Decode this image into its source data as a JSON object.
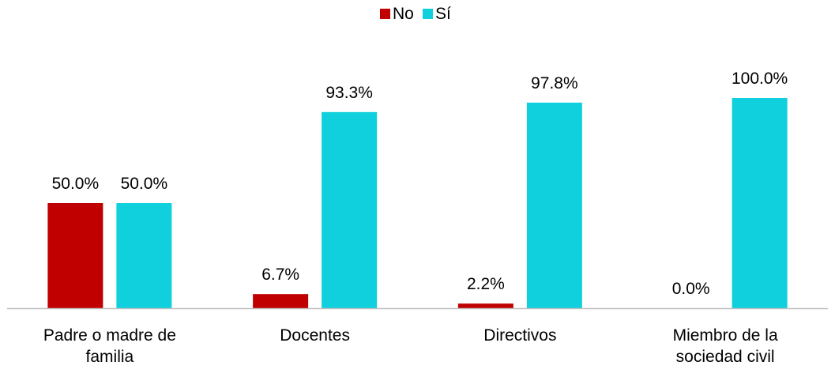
{
  "chart_data": {
    "type": "bar",
    "categories": [
      [
        "Padre o madre de",
        "familia"
      ],
      [
        "Docentes"
      ],
      [
        "Directivos"
      ],
      [
        "Miembro de la",
        "sociedad civil"
      ]
    ],
    "series": [
      {
        "name": "No",
        "color": "#C00000",
        "values": [
          50.0,
          6.7,
          2.2,
          0.0
        ],
        "labels": [
          "50.0%",
          "6.7%",
          "2.2%",
          "0.0%"
        ]
      },
      {
        "name": "Sí",
        "color": "#0FD0DC",
        "values": [
          50.0,
          93.3,
          97.8,
          100.0
        ],
        "labels": [
          "50.0%",
          "93.3%",
          "97.8%",
          "100.0%"
        ]
      }
    ],
    "ylim": [
      0,
      100
    ],
    "grid": false,
    "legend_position": "top-center",
    "title": "",
    "xlabel": "",
    "ylabel": ""
  }
}
